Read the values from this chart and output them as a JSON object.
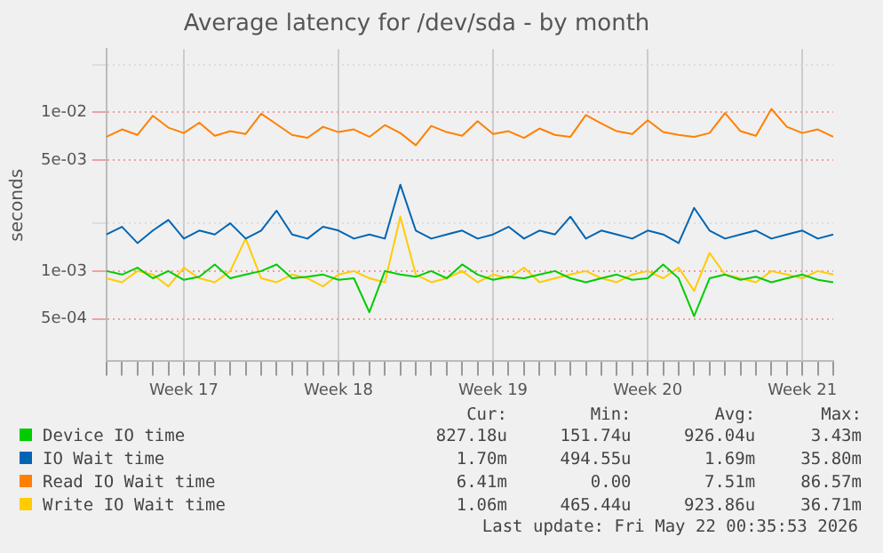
{
  "chart_data": {
    "type": "line",
    "title": "Average latency for /dev/sda - by month",
    "ylabel": "seconds",
    "categories": [
      null,
      null,
      null,
      null,
      null,
      "Week 17",
      null,
      null,
      null,
      null,
      null,
      null,
      null,
      null,
      null,
      "Week 18",
      null,
      null,
      null,
      null,
      null,
      null,
      null,
      null,
      null,
      "Week 19",
      null,
      null,
      null,
      null,
      null,
      null,
      null,
      null,
      null,
      "Week 20",
      null,
      null,
      null,
      null,
      null,
      null,
      null,
      null,
      null,
      "Week 21",
      null,
      null
    ],
    "series": [
      {
        "name": "Device IO time",
        "color": "#00cc00",
        "values": [
          0.001,
          0.00095,
          0.00105,
          0.0009,
          0.001,
          0.00088,
          0.00092,
          0.0011,
          0.0009,
          0.00095,
          0.001,
          0.0011,
          0.0009,
          0.00092,
          0.00095,
          0.00088,
          0.0009,
          0.00055,
          0.001,
          0.00095,
          0.00092,
          0.001,
          0.0009,
          0.0011,
          0.00095,
          0.00088,
          0.00092,
          0.0009,
          0.00095,
          0.001,
          0.0009,
          0.00085,
          0.0009,
          0.00095,
          0.00088,
          0.0009,
          0.0011,
          0.0009,
          0.00052,
          0.0009,
          0.00095,
          0.00088,
          0.00092,
          0.00085,
          0.0009,
          0.00095,
          0.00088,
          0.00085
        ]
      },
      {
        "name": "IO Wait time",
        "color": "#0066b3",
        "values": [
          0.0017,
          0.0019,
          0.0015,
          0.0018,
          0.0021,
          0.0016,
          0.0018,
          0.0017,
          0.002,
          0.0016,
          0.0018,
          0.0024,
          0.0017,
          0.0016,
          0.0019,
          0.0018,
          0.0016,
          0.0017,
          0.0016,
          0.0035,
          0.0018,
          0.0016,
          0.0017,
          0.0018,
          0.0016,
          0.0017,
          0.0019,
          0.0016,
          0.0018,
          0.0017,
          0.0022,
          0.0016,
          0.0018,
          0.0017,
          0.0016,
          0.0018,
          0.0017,
          0.0015,
          0.0025,
          0.0018,
          0.0016,
          0.0017,
          0.0018,
          0.0016,
          0.0017,
          0.0018,
          0.0016,
          0.0017
        ]
      },
      {
        "name": "Read IO Wait time",
        "color": "#ff8000",
        "values": [
          0.007,
          0.0078,
          0.0072,
          0.0095,
          0.008,
          0.0074,
          0.0086,
          0.0071,
          0.0076,
          0.0073,
          0.0098,
          0.0084,
          0.0072,
          0.0069,
          0.0081,
          0.0075,
          0.0078,
          0.007,
          0.0083,
          0.0074,
          0.0062,
          0.0082,
          0.0075,
          0.0071,
          0.0088,
          0.0073,
          0.0076,
          0.0069,
          0.0079,
          0.0072,
          0.007,
          0.0096,
          0.0085,
          0.0076,
          0.0073,
          0.0089,
          0.0075,
          0.0072,
          0.007,
          0.0074,
          0.0099,
          0.0076,
          0.0071,
          0.0105,
          0.0081,
          0.0074,
          0.0078,
          0.007
        ]
      },
      {
        "name": "Write IO Wait time",
        "color": "#ffcc00",
        "values": [
          0.0009,
          0.00085,
          0.001,
          0.00095,
          0.0008,
          0.00105,
          0.0009,
          0.00085,
          0.001,
          0.0016,
          0.0009,
          0.00085,
          0.00095,
          0.0009,
          0.0008,
          0.00095,
          0.001,
          0.0009,
          0.00085,
          0.0022,
          0.00095,
          0.00085,
          0.0009,
          0.001,
          0.00085,
          0.00095,
          0.0009,
          0.00105,
          0.00085,
          0.0009,
          0.00095,
          0.001,
          0.0009,
          0.00085,
          0.00095,
          0.001,
          0.0009,
          0.00105,
          0.00075,
          0.0013,
          0.00095,
          0.0009,
          0.00085,
          0.001,
          0.00095,
          0.0009,
          0.001,
          0.00095
        ]
      }
    ],
    "ylim": [
      0.00027,
      0.025
    ],
    "yticks": [
      {
        "value": 0.0005,
        "label": "5e-04"
      },
      {
        "value": 0.001,
        "label": "1e-03"
      },
      {
        "value": 0.002,
        "label": null
      },
      {
        "value": 0.005,
        "label": "5e-03"
      },
      {
        "value": 0.01,
        "label": "1e-02"
      },
      {
        "value": 0.02,
        "label": null
      }
    ],
    "log": "y",
    "grid": true,
    "legend": "bottom",
    "marker": "none",
    "line_style": "solid",
    "annotations": [
      "Cur:",
      "Min:",
      "Avg:",
      "Max:",
      "827.18u",
      "151.74u",
      "926.04u",
      "3.43m",
      "1.70m",
      "494.55u",
      "1.69m",
      "35.80m",
      "6.41m",
      "0.00",
      "7.51m",
      "86.57m",
      "1.06m",
      "465.44u",
      "923.86u",
      "36.71m",
      "Last update: Fri May 22 00:35:53 2026"
    ]
  }
}
